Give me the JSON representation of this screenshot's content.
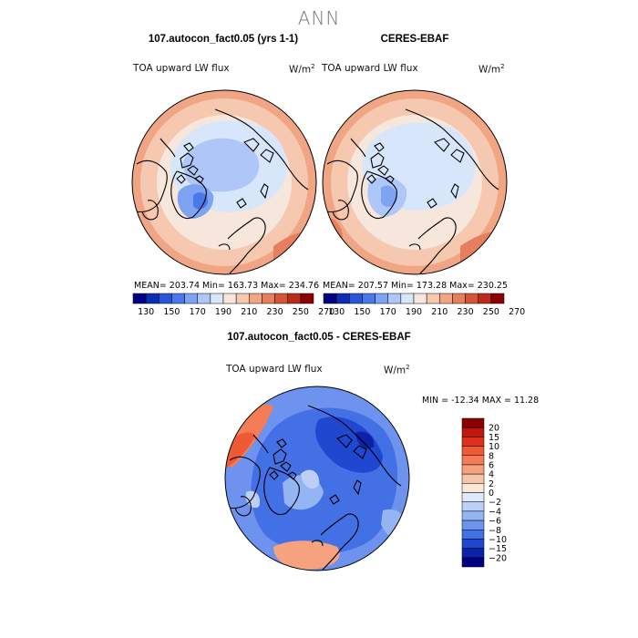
{
  "main_title": "ANN",
  "panels": [
    {
      "title": "107.autocon_fact0.05 (yrs 1-1)",
      "variable": "TOA upward LW flux",
      "units": "W/m",
      "units_sup": "2",
      "stats": "MEAN= 203.74   Min= 163.73   Max= 234.76"
    },
    {
      "title": "CERES-EBAF",
      "variable": "TOA upward LW flux",
      "units": "W/m",
      "units_sup": "2",
      "stats": "MEAN= 207.57   Min= 173.28   Max= 230.25"
    },
    {
      "title": "107.autocon_fact0.05 - CERES-EBAF",
      "variable": "TOA upward LW flux",
      "units": "W/m",
      "units_sup": "2",
      "stats": "MIN = -12.34  MAX =  11.28"
    }
  ],
  "chart_data": [
    {
      "type": "heatmap",
      "projection": "north-polar-stereographic",
      "title": "107.autocon_fact0.05 (yrs 1-1)",
      "variable": "TOA upward LW flux",
      "units": "W/m2",
      "mean": 203.74,
      "min": 163.73,
      "max": 234.76,
      "colorbar": {
        "orientation": "horizontal",
        "tick_labels": [
          "130",
          "150",
          "170",
          "190",
          "210",
          "230",
          "250",
          "270"
        ],
        "colors": [
          "#000080",
          "#0a2db4",
          "#2a55d8",
          "#4a78ea",
          "#7ea3f2",
          "#aec7f7",
          "#d8e6fb",
          "#f6e6dc",
          "#f6c8b0",
          "#f0a684",
          "#e67f5e",
          "#d65538",
          "#bb2a1a",
          "#8b0000"
        ]
      }
    },
    {
      "type": "heatmap",
      "projection": "north-polar-stereographic",
      "title": "CERES-EBAF",
      "variable": "TOA upward LW flux",
      "units": "W/m2",
      "mean": 207.57,
      "min": 173.28,
      "max": 230.25,
      "colorbar": {
        "orientation": "horizontal",
        "tick_labels": [
          "130",
          "150",
          "170",
          "190",
          "210",
          "230",
          "250",
          "270"
        ],
        "colors": [
          "#000080",
          "#0a2db4",
          "#2a55d8",
          "#4a78ea",
          "#7ea3f2",
          "#aec7f7",
          "#d8e6fb",
          "#f6e6dc",
          "#f6c8b0",
          "#f0a684",
          "#e67f5e",
          "#d65538",
          "#bb2a1a",
          "#8b0000"
        ]
      }
    },
    {
      "type": "heatmap",
      "projection": "north-polar-stereographic",
      "title": "107.autocon_fact0.05 - CERES-EBAF",
      "variable": "TOA upward LW flux",
      "units": "W/m2",
      "min": -12.34,
      "max": 11.28,
      "colorbar": {
        "orientation": "vertical",
        "tick_labels": [
          "20",
          "15",
          "10",
          "8",
          "6",
          "4",
          "2",
          "0",
          "−2",
          "−4",
          "−6",
          "−8",
          "−10",
          "−15",
          "−20"
        ],
        "colors": [
          "#8b0000",
          "#c0180c",
          "#e0301c",
          "#ef5a35",
          "#f47d58",
          "#f6a27e",
          "#f7c5aa",
          "#fbe6d8",
          "#dfe9fb",
          "#bcd0f7",
          "#95b4f3",
          "#6d93ee",
          "#4470e6",
          "#1f47d0",
          "#0a22a8",
          "#000080"
        ]
      }
    }
  ]
}
